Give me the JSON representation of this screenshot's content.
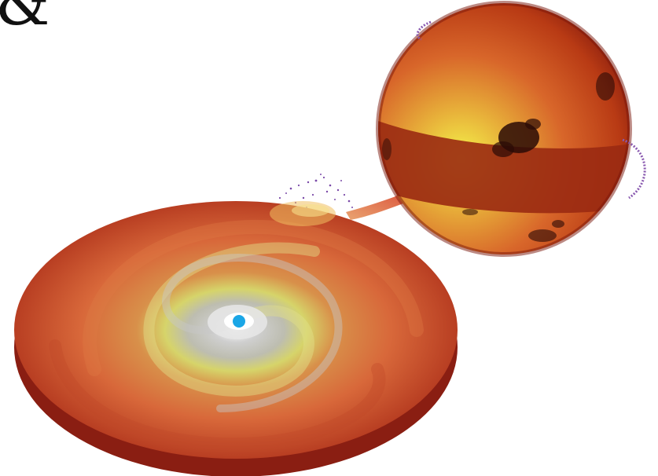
{
  "corner_glyph": "&",
  "colors": {
    "background": "#ffffff",
    "disk_outer": "#a8281a",
    "disk_mid": "#d86a32",
    "disk_inner": "#d8d86a",
    "disk_core": "#c8c8c8",
    "disk_rim": "#8a1e12",
    "accretor": "#1aa6e6",
    "star_base": "#d85a1c",
    "star_highlight": "#f0f04a",
    "star_band": "#9a2a12",
    "starspot": "#2a0a06",
    "stream": "#d8603a",
    "spray": "#7a4aa8"
  }
}
